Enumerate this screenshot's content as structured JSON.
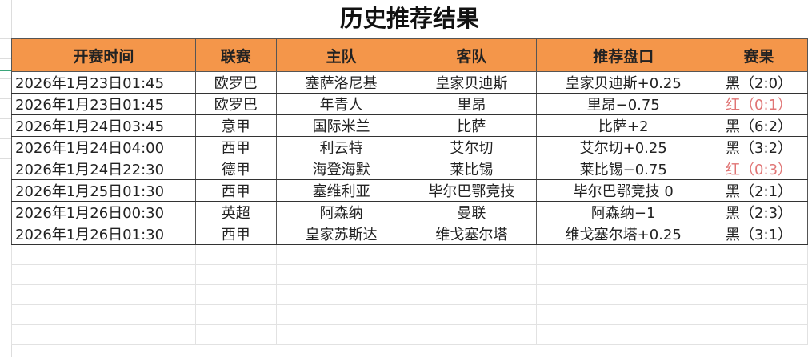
{
  "title": "历史推荐结果",
  "columns": [
    "开赛时间",
    "联赛",
    "主队",
    "客队",
    "推荐盘口",
    "赛果"
  ],
  "rows": [
    [
      "2026年1月23日01:45",
      "欧罗巴",
      "塞萨洛尼基",
      "皇家贝迪斯",
      "皇家贝迪斯+0.25",
      "黑（2:0）",
      "black"
    ],
    [
      "2026年1月23日01:45",
      "欧罗巴",
      "年青人",
      "里昂",
      "里昂−0.75",
      "红（0:1）",
      "red"
    ],
    [
      "2026年1月24日03:45",
      "意甲",
      "国际米兰",
      "比萨",
      "比萨+2",
      "黑（6:2）",
      "black"
    ],
    [
      "2026年1月24日04:00",
      "西甲",
      "利云特",
      "艾尔切",
      "艾尔切+0.25",
      "黑（3:2）",
      "black"
    ],
    [
      "2026年1月24日22:30",
      "德甲",
      "海登海默",
      "莱比锡",
      "莱比锡−0.75",
      "红（0:3）",
      "red"
    ],
    [
      "2026年1月25日01:30",
      "西甲",
      "塞维利亚",
      "毕尔巴鄂竞技",
      "毕尔巴鄂竞技 0",
      "黑（2:1）",
      "black"
    ],
    [
      "2026年1月26日00:30",
      "英超",
      "阿森纳",
      "曼联",
      "阿森纳−1",
      "黑（2:3）",
      "black"
    ],
    [
      "2026年1月26日01:30",
      "西甲",
      "皇家苏斯达",
      "维戈塞尔塔",
      "维戈塞尔塔+0.25",
      "黑（3:1）",
      "black"
    ]
  ],
  "colors": {
    "header_bg": "#F4964A",
    "red_result": "#e07575"
  }
}
